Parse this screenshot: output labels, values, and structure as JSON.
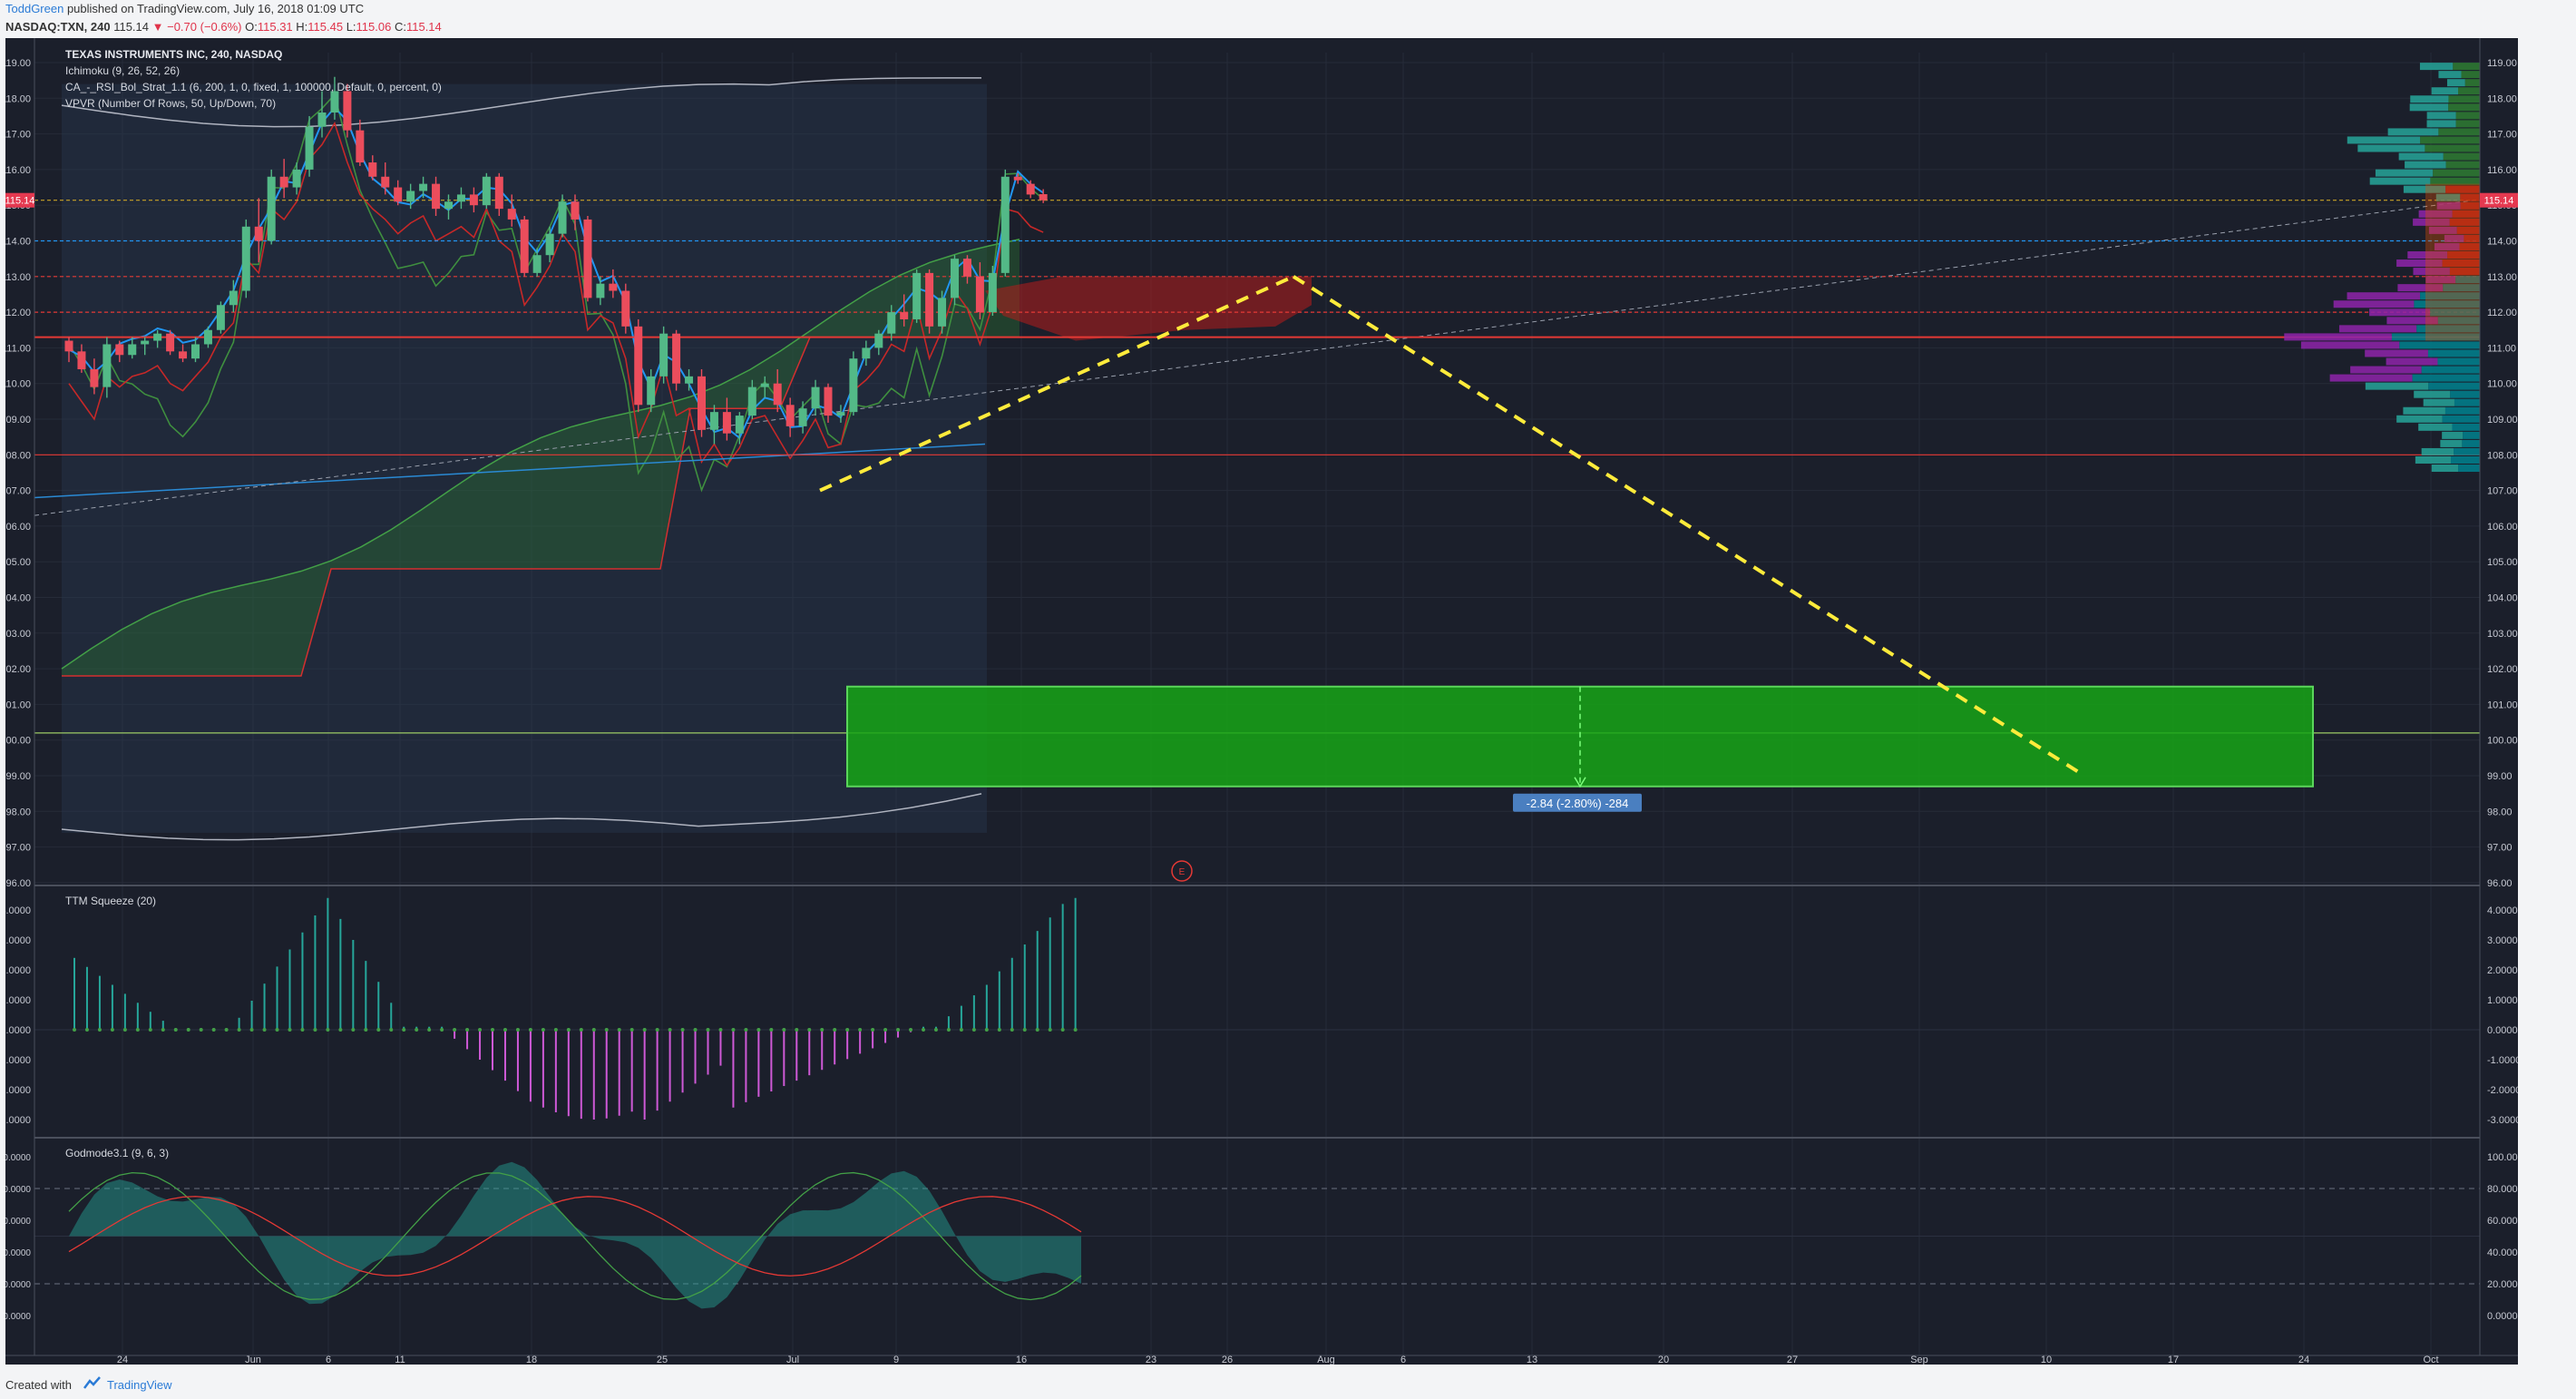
{
  "header": {
    "author": "ToddGreen",
    "published": "published on TradingView.com, July 16, 2018 01:09 UTC",
    "symbol": "NASDAQ:TXN, 240",
    "last": "115.14",
    "change": "▼ −0.70 (−0.6%)",
    "o_label": "O:",
    "o_val": "115.31",
    "h_label": "H:",
    "h_val": "115.45",
    "l_label": "L:",
    "l_val": "115.06",
    "c_label": "C:",
    "c_val": "115.14"
  },
  "legend": {
    "title": "TEXAS INSTRUMENTS INC, 240, NASDAQ",
    "ichimoku": "Ichimoku (9, 26, 52, 26)",
    "strategy": "CA_-_RSI_Bol_Strat_1.1 (6, 200, 1, 0, fixed, 1, 100000, Default, 0, percent, 0)",
    "vpvr": "VPVR (Number Of Rows, 50, Up/Down, 70)"
  },
  "price_axis": {
    "ticks": [
      "119.00",
      "118.00",
      "117.00",
      "116.00",
      "115.00",
      "114.00",
      "113.00",
      "112.00",
      "111.00",
      "110.00",
      "109.00",
      "108.00",
      "107.00",
      "106.00",
      "105.00",
      "104.00",
      "103.00",
      "102.00",
      "101.00",
      "100.00",
      "99.00",
      "98.00",
      "97.00",
      "96.00"
    ],
    "last_price_tag": "115.14"
  },
  "squeeze_panel": {
    "title": "TTM Squeeze (20)",
    "ticks": [
      "4.0000",
      "3.0000",
      "2.0000",
      "1.0000",
      "0.0000",
      "-1.0000",
      "-2.0000",
      "-3.0000"
    ]
  },
  "godmode_panel": {
    "title": "Godmode3.1 (9, 6, 3)",
    "ticks": [
      "100.0000",
      "80.0000",
      "60.0000",
      "40.0000",
      "20.0000",
      "0.0000"
    ]
  },
  "time_axis": {
    "labels": [
      "24",
      "Jun",
      "6",
      "11",
      "18",
      "25",
      "Jul",
      "9",
      "16",
      "23",
      "26",
      "Aug",
      "6",
      "13",
      "20",
      "27",
      "Sep",
      "10",
      "17",
      "24",
      "Oct"
    ]
  },
  "measure_label": "-2.84 (-2.80%) -284",
  "earnings_marker": "E",
  "footer": {
    "created": "Created with",
    "brand": "TradingView"
  },
  "colors": {
    "background": "#1b1f2b",
    "bull": "#53b987",
    "bear": "#eb4d5c",
    "tenkan": "#2196f3",
    "kijun": "#c62828",
    "target_zone": "#16a516",
    "projection": "#ffeb3b",
    "squeeze_up": "#26a69a",
    "squeeze_down": "#ce59d6"
  },
  "chart_data": {
    "type": "candlestick",
    "series_price": [
      [
        111.2,
        111.3,
        110.6,
        110.9
      ],
      [
        110.9,
        111.1,
        110.3,
        110.4
      ],
      [
        110.4,
        110.7,
        109.7,
        109.9
      ],
      [
        109.9,
        111.3,
        109.6,
        111.1
      ],
      [
        111.1,
        111.2,
        110.6,
        110.8
      ],
      [
        110.8,
        111.3,
        110.7,
        111.1
      ],
      [
        111.1,
        111.3,
        110.8,
        111.2
      ],
      [
        111.2,
        111.5,
        111.0,
        111.4
      ],
      [
        111.4,
        111.5,
        110.8,
        110.9
      ],
      [
        110.9,
        111.1,
        110.6,
        110.7
      ],
      [
        110.7,
        111.3,
        110.6,
        111.1
      ],
      [
        111.1,
        111.6,
        111.0,
        111.5
      ],
      [
        111.5,
        112.3,
        111.4,
        112.2
      ],
      [
        112.2,
        112.9,
        112.0,
        112.6
      ],
      [
        112.6,
        114.6,
        112.4,
        114.4
      ],
      [
        114.4,
        115.2,
        113.4,
        114.0
      ],
      [
        114.0,
        116.0,
        113.9,
        115.8
      ],
      [
        115.8,
        116.3,
        115.2,
        115.5
      ],
      [
        115.5,
        116.2,
        115.3,
        116.0
      ],
      [
        116.0,
        117.5,
        115.8,
        117.2
      ],
      [
        117.2,
        118.2,
        116.9,
        117.6
      ],
      [
        117.6,
        118.6,
        117.4,
        118.2
      ],
      [
        118.2,
        118.4,
        116.9,
        117.1
      ],
      [
        117.1,
        117.4,
        116.1,
        116.2
      ],
      [
        116.2,
        116.4,
        115.7,
        115.8
      ],
      [
        115.8,
        116.2,
        115.3,
        115.5
      ],
      [
        115.5,
        115.7,
        115.0,
        115.1
      ],
      [
        115.1,
        115.6,
        114.9,
        115.4
      ],
      [
        115.4,
        115.8,
        115.2,
        115.6
      ],
      [
        115.6,
        115.8,
        114.7,
        114.9
      ],
      [
        114.9,
        115.3,
        114.6,
        115.1
      ],
      [
        115.1,
        115.5,
        114.9,
        115.3
      ],
      [
        115.3,
        115.5,
        114.8,
        115.0
      ],
      [
        115.0,
        115.9,
        114.9,
        115.8
      ],
      [
        115.8,
        115.9,
        114.7,
        114.9
      ],
      [
        114.9,
        115.3,
        114.4,
        114.6
      ],
      [
        114.6,
        114.7,
        113.0,
        113.1
      ],
      [
        113.1,
        113.8,
        113.0,
        113.6
      ],
      [
        113.6,
        114.4,
        113.4,
        114.2
      ],
      [
        114.2,
        115.3,
        114.1,
        115.1
      ],
      [
        115.1,
        115.3,
        114.3,
        114.6
      ],
      [
        114.6,
        114.7,
        112.3,
        112.4
      ],
      [
        112.4,
        113.0,
        112.2,
        112.8
      ],
      [
        112.8,
        113.2,
        112.4,
        112.6
      ],
      [
        112.6,
        112.8,
        111.4,
        111.6
      ],
      [
        111.6,
        111.8,
        109.2,
        109.4
      ],
      [
        109.4,
        110.4,
        109.2,
        110.2
      ],
      [
        110.2,
        111.6,
        110.0,
        111.4
      ],
      [
        111.4,
        111.5,
        109.8,
        110.0
      ],
      [
        110.0,
        110.4,
        109.8,
        110.2
      ],
      [
        110.2,
        110.4,
        108.5,
        108.7
      ],
      [
        108.7,
        109.4,
        108.3,
        109.2
      ],
      [
        109.2,
        109.6,
        108.4,
        108.6
      ],
      [
        108.6,
        109.2,
        108.3,
        109.1
      ],
      [
        109.1,
        110.1,
        109.0,
        109.9
      ],
      [
        109.9,
        110.2,
        109.6,
        110.0
      ],
      [
        110.0,
        110.4,
        109.2,
        109.4
      ],
      [
        109.4,
        109.6,
        108.5,
        108.8
      ],
      [
        108.8,
        109.5,
        108.6,
        109.3
      ],
      [
        109.3,
        110.1,
        109.1,
        109.9
      ],
      [
        109.9,
        110.0,
        108.9,
        109.1
      ],
      [
        109.1,
        109.4,
        108.9,
        109.2
      ],
      [
        109.2,
        110.9,
        109.1,
        110.7
      ],
      [
        110.7,
        111.2,
        110.5,
        111.0
      ],
      [
        111.0,
        111.5,
        110.8,
        111.4
      ],
      [
        111.4,
        112.2,
        111.2,
        112.0
      ],
      [
        112.0,
        112.5,
        111.6,
        111.8
      ],
      [
        111.8,
        113.2,
        111.7,
        113.1
      ],
      [
        113.1,
        113.2,
        111.4,
        111.6
      ],
      [
        111.6,
        112.6,
        111.4,
        112.4
      ],
      [
        112.4,
        113.6,
        112.2,
        113.5
      ],
      [
        113.5,
        113.6,
        112.8,
        113.0
      ],
      [
        113.0,
        113.4,
        111.8,
        112.0
      ],
      [
        112.0,
        113.3,
        111.9,
        113.1
      ],
      [
        113.1,
        116.0,
        113.0,
        115.8
      ],
      [
        115.8,
        115.9,
        115.6,
        115.7
      ],
      [
        115.6,
        115.7,
        115.2,
        115.3
      ],
      [
        115.31,
        115.45,
        115.06,
        115.14
      ]
    ],
    "ylim": [
      96,
      119.4
    ],
    "target_zone": [
      98.7,
      101.5
    ],
    "horizontal_levels": [
      115.14,
      114.0,
      113.0,
      112.0,
      111.3,
      108.0,
      100.2
    ],
    "measure": "-2.84 (-2.80%) -284"
  }
}
